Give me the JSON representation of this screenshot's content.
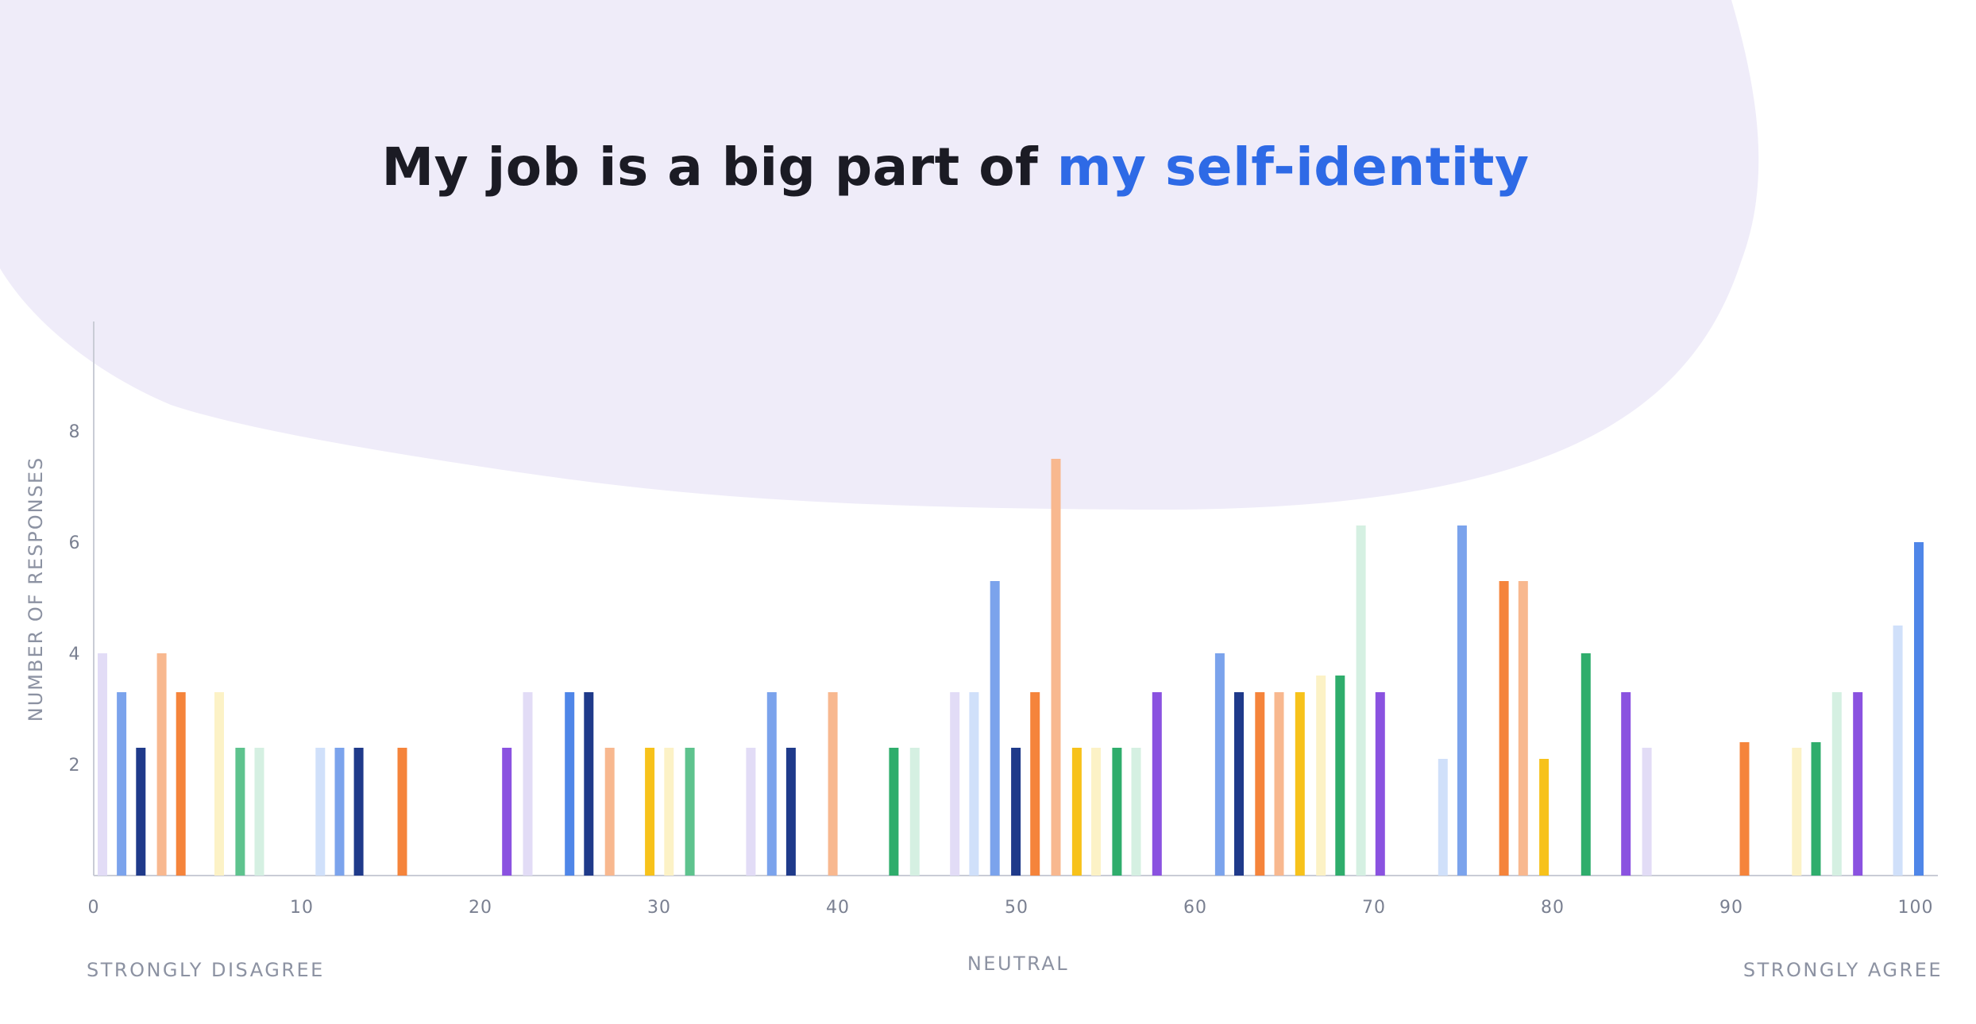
{
  "title": {
    "main": "My job is a big part of ",
    "highlight": "my self-identity"
  },
  "colors": {
    "background_blob": "#efecf9",
    "title_text": "#1b1b24",
    "title_highlight": "#2e6ae6",
    "axis": "#c9ccd6",
    "tick_text": "#7a8091"
  },
  "scale_labels": {
    "left": "STRONGLY DISAGREE",
    "middle": "NEUTRAL",
    "right": "STRONGLY AGREE"
  },
  "chart_data": {
    "type": "bar",
    "xlabel": "",
    "ylabel": "NUMBER OF RESPONSES",
    "xlim": [
      0,
      100
    ],
    "ylim": [
      0,
      10
    ],
    "xticks": [
      0,
      10,
      20,
      30,
      40,
      50,
      60,
      70,
      80,
      90,
      100
    ],
    "yticks": [
      2,
      4,
      6,
      8
    ],
    "grid": false,
    "bars": [
      {
        "x": 0.5,
        "y": 4,
        "color": "#e2dcf6"
      },
      {
        "x": 1.6,
        "y": 3.3,
        "color": "#7ba3ec"
      },
      {
        "x": 2.7,
        "y": 2.3,
        "color": "#1f3a8a"
      },
      {
        "x": 3.9,
        "y": 4,
        "color": "#f8b88f"
      },
      {
        "x": 5.0,
        "y": 3.3,
        "color": "#f5843b"
      },
      {
        "x": 7.2,
        "y": 3.3,
        "color": "#fcf2c6"
      },
      {
        "x": 8.4,
        "y": 2.3,
        "color": "#5ec38e"
      },
      {
        "x": 9.5,
        "y": 2.3,
        "color": "#d5f0e2"
      },
      {
        "x": 13.0,
        "y": 2.3,
        "color": "#d0e0fa"
      },
      {
        "x": 14.1,
        "y": 2.3,
        "color": "#7ba3ec"
      },
      {
        "x": 15.2,
        "y": 2.3,
        "color": "#1f3a8a"
      },
      {
        "x": 17.7,
        "y": 2.3,
        "color": "#f5843b"
      },
      {
        "x": 23.7,
        "y": 2.3,
        "color": "#8a52e0"
      },
      {
        "x": 24.9,
        "y": 3.3,
        "color": "#e2dcf6"
      },
      {
        "x": 27.3,
        "y": 3.3,
        "color": "#4f86e8"
      },
      {
        "x": 28.4,
        "y": 3.3,
        "color": "#1f3a8a"
      },
      {
        "x": 29.6,
        "y": 2.3,
        "color": "#f8b88f"
      },
      {
        "x": 31.9,
        "y": 2.3,
        "color": "#f7c21b"
      },
      {
        "x": 33.0,
        "y": 2.3,
        "color": "#fcf2c6"
      },
      {
        "x": 34.2,
        "y": 2.3,
        "color": "#5ec38e"
      },
      {
        "x": 37.7,
        "y": 2.3,
        "color": "#e2dcf6"
      },
      {
        "x": 38.9,
        "y": 3.3,
        "color": "#7ba3ec"
      },
      {
        "x": 40.0,
        "y": 2.3,
        "color": "#1f3a8a"
      },
      {
        "x": 42.4,
        "y": 3.3,
        "color": "#f8b88f"
      },
      {
        "x": 45.9,
        "y": 2.3,
        "color": "#2fad6c"
      },
      {
        "x": 47.1,
        "y": 2.3,
        "color": "#d5f0e2"
      },
      {
        "x": 49.4,
        "y": 3.3,
        "color": "#e2dcf6"
      },
      {
        "x": 50.5,
        "y": 3.3,
        "color": "#d0e0fa"
      },
      {
        "x": 51.7,
        "y": 5.3,
        "color": "#7ba3ec"
      },
      {
        "x": 52.9,
        "y": 2.3,
        "color": "#1f3a8a"
      },
      {
        "x": 54.0,
        "y": 3.3,
        "color": "#f5843b"
      },
      {
        "x": 55.2,
        "y": 7.5,
        "color": "#f8b88f"
      },
      {
        "x": 56.4,
        "y": 2.3,
        "color": "#f7c21b"
      },
      {
        "x": 57.5,
        "y": 2.3,
        "color": "#fcf2c6"
      },
      {
        "x": 58.7,
        "y": 2.3,
        "color": "#2fad6c"
      },
      {
        "x": 59.8,
        "y": 2.3,
        "color": "#d5f0e2"
      },
      {
        "x": 61.0,
        "y": 3.3,
        "color": "#8a52e0"
      },
      {
        "x": 64.6,
        "y": 4,
        "color": "#7ba3ec"
      },
      {
        "x": 65.7,
        "y": 3.3,
        "color": "#1f3a8a"
      },
      {
        "x": 66.9,
        "y": 3.3,
        "color": "#f5843b"
      },
      {
        "x": 68.0,
        "y": 3.3,
        "color": "#f8b88f"
      },
      {
        "x": 69.2,
        "y": 3.3,
        "color": "#f7c21b"
      },
      {
        "x": 70.4,
        "y": 3.6,
        "color": "#fcf2c6"
      },
      {
        "x": 71.5,
        "y": 3.6,
        "color": "#2fad6c"
      },
      {
        "x": 72.7,
        "y": 6.3,
        "color": "#d5f0e2"
      },
      {
        "x": 73.8,
        "y": 3.3,
        "color": "#8a52e0"
      },
      {
        "x": 77.4,
        "y": 2.1,
        "color": "#d0e0fa"
      },
      {
        "x": 78.5,
        "y": 6.3,
        "color": "#7ba3ec"
      },
      {
        "x": 80.9,
        "y": 5.3,
        "color": "#f5843b"
      },
      {
        "x": 82.0,
        "y": 5.3,
        "color": "#f8b88f"
      },
      {
        "x": 83.2,
        "y": 2.1,
        "color": "#f7c21b"
      },
      {
        "x": 85.6,
        "y": 4,
        "color": "#2fad6c"
      },
      {
        "x": 87.9,
        "y": 3.3,
        "color": "#8a52e0"
      },
      {
        "x": 89.1,
        "y": 2.3,
        "color": "#e2dcf6"
      },
      {
        "x": 94.7,
        "y": 2.4,
        "color": "#f5843b"
      },
      {
        "x": 97.7,
        "y": 2.3,
        "color": "#fcf2c6"
      },
      {
        "x": 98.8,
        "y": 2.4,
        "color": "#2fad6c"
      },
      {
        "x": 100.0,
        "y": 3.3,
        "color": "#d5f0e2"
      },
      {
        "x": 101.2,
        "y": 3.3,
        "color": "#8a52e0"
      },
      {
        "x": 103.5,
        "y": 4.5,
        "color": "#d0e0fa"
      },
      {
        "x": 104.7,
        "y": 6.0,
        "color": "#4f86e8"
      }
    ]
  }
}
